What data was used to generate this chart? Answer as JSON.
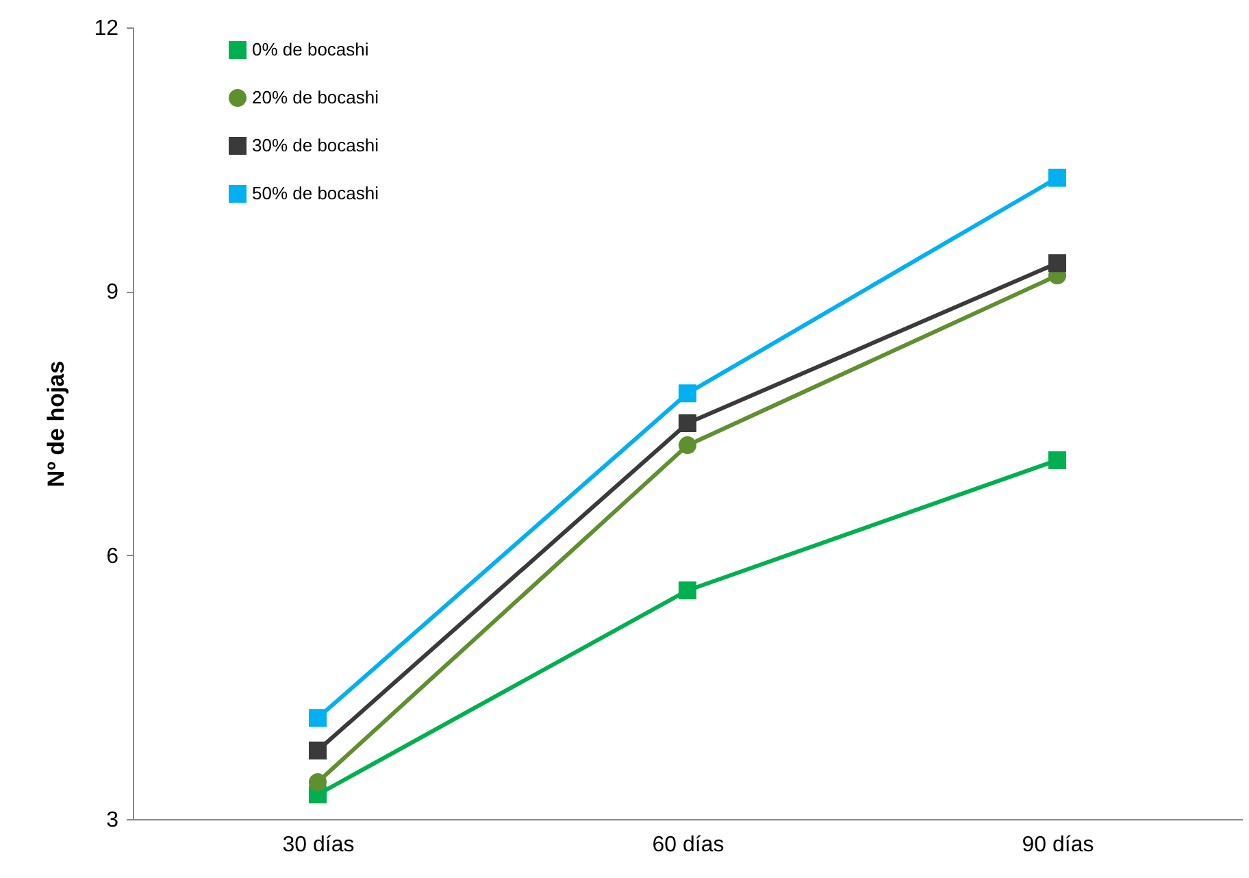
{
  "chart_data": {
    "type": "line",
    "ylabel": "Nº de hojas",
    "categories": [
      "30 días",
      "60 días",
      "90 días"
    ],
    "series": [
      {
        "name": "0% de bocashi",
        "color": "#00b050",
        "marker": "square",
        "values": [
          3.28,
          5.6,
          7.08
        ]
      },
      {
        "name": "20% de bocashi",
        "color": "#5f8f2f",
        "marker": "circle",
        "values": [
          3.42,
          7.25,
          9.18
        ]
      },
      {
        "name": "30% de bocashi",
        "color": "#3a3a3a",
        "marker": "square",
        "values": [
          3.78,
          7.5,
          9.32
        ]
      },
      {
        "name": "50% de bocashi",
        "color": "#00b0f0",
        "marker": "square",
        "values": [
          4.15,
          7.84,
          10.29
        ]
      }
    ],
    "ylim": [
      3,
      12
    ],
    "yticks": [
      3,
      6,
      9,
      12
    ],
    "grid": false,
    "legend": "top left",
    "line_style": "solid"
  }
}
